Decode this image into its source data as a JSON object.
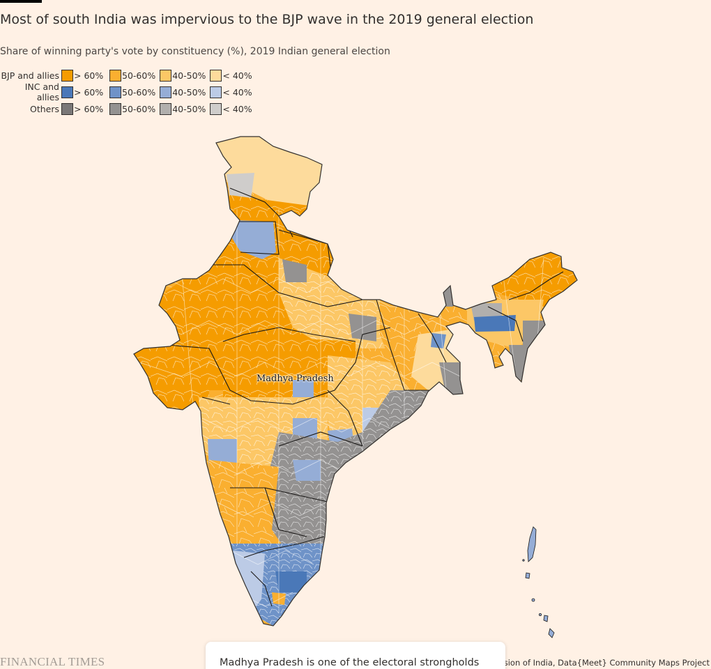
{
  "title": "Most of south India was impervious to the BJP wave in the 2019 general election",
  "subtitle": "Share of winning party's vote by constituency (%), 2019 Indian general election",
  "legend": {
    "rows": [
      {
        "label": "BJP and allies",
        "items": [
          {
            "label": "> 60%",
            "color": "#f59c00"
          },
          {
            "label": "50-60%",
            "color": "#faaf30"
          },
          {
            "label": "40-50%",
            "color": "#fcc766"
          },
          {
            "label": "< 40%",
            "color": "#fddb9c"
          }
        ]
      },
      {
        "label": "INC and allies",
        "items": [
          {
            "label": "> 60%",
            "color": "#4a78b8"
          },
          {
            "label": "50-60%",
            "color": "#6f93c8"
          },
          {
            "label": "40-50%",
            "color": "#95add6"
          },
          {
            "label": "< 40%",
            "color": "#bccbe6"
          }
        ]
      },
      {
        "label": "Others",
        "items": [
          {
            "label": "> 60%",
            "color": "#7a7878"
          },
          {
            "label": "50-60%",
            "color": "#949291"
          },
          {
            "label": "40-50%",
            "color": "#b1afad"
          },
          {
            "label": "< 40%",
            "color": "#cfcdcb"
          }
        ]
      }
    ]
  },
  "map": {
    "highlight_label": "Madhya Pradesh",
    "outline_color": "#1a1817",
    "border_color": "#ffffff"
  },
  "tooltip": {
    "text": "Madhya Pradesh is one of the electoral strongholds of BJP"
  },
  "footer": {
    "logo": "FINANCIAL TIMES",
    "source": "Source: Election Commission of India, Data{Meet} Community Maps Project"
  }
}
